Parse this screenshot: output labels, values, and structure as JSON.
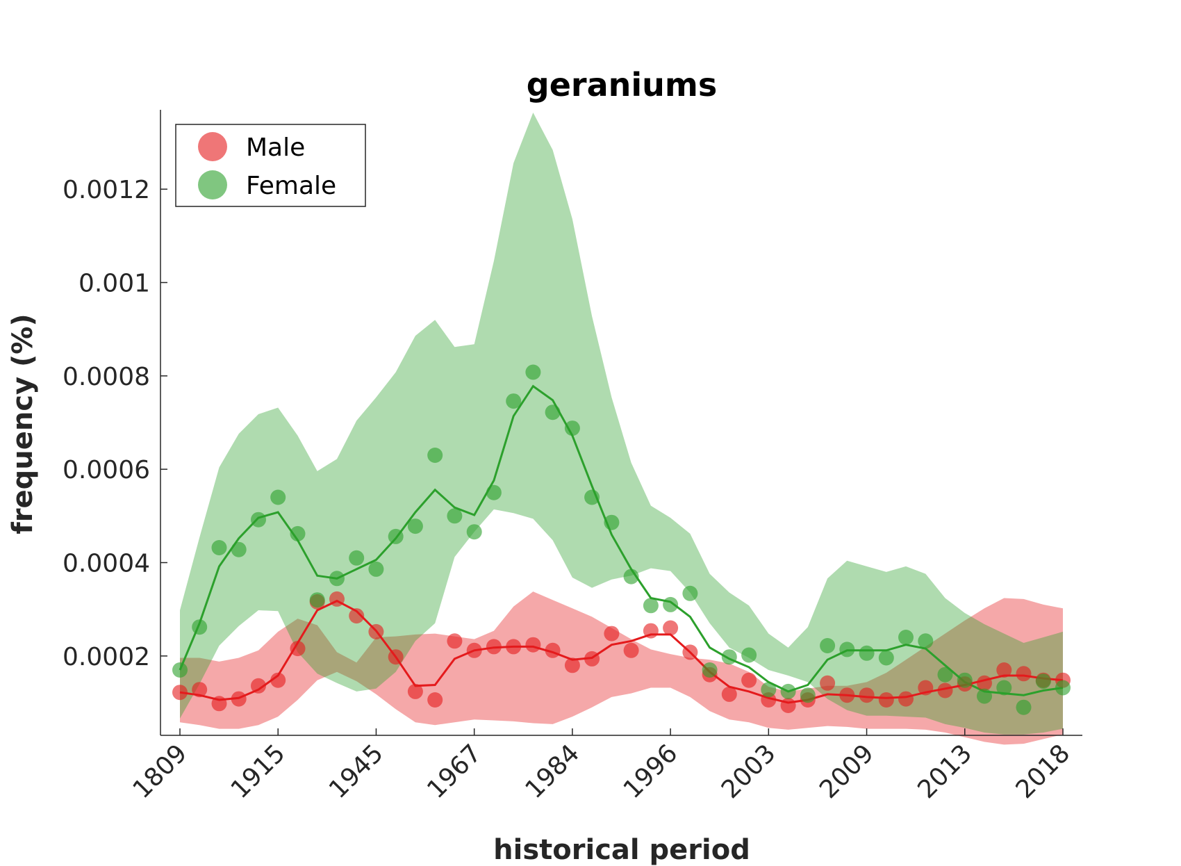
{
  "chart_data": {
    "type": "line",
    "title": "geraniums",
    "xlabel": "historical period",
    "ylabel": "frequency (%)",
    "x_tick_labels": [
      "1809",
      "1915",
      "1945",
      "1967",
      "1984",
      "1996",
      "2003",
      "2009",
      "2013",
      "2018"
    ],
    "y_ticks": [
      0.0002,
      0.0004,
      0.0006,
      0.0008,
      0.001,
      0.0012
    ],
    "y_tick_labels": [
      "0.0002",
      "0.0004",
      "0.0006",
      "0.0008",
      "0.001",
      "0.0012"
    ],
    "ylim": [
      3e-05,
      0.00137
    ],
    "legend": {
      "position": "top-left",
      "entries": [
        "Male",
        "Female"
      ]
    },
    "series": [
      {
        "name": "Male",
        "color": "#e41a1c",
        "band_color": "#f4a3a4",
        "points": [
          0.000122,
          0.000128,
          9.8e-05,
          0.000108,
          0.000136,
          0.000148,
          0.000216,
          0.000316,
          0.000322,
          0.000286,
          0.000252,
          0.000198,
          0.000124,
          0.000106,
          0.000232,
          0.000212,
          0.00022,
          0.00022,
          0.000224,
          0.000212,
          0.00018,
          0.000194,
          0.000248,
          0.000212,
          0.000254,
          0.00026,
          0.000208,
          0.00016,
          0.000118,
          0.000148,
          0.000106,
          9.4e-05,
          0.000106,
          0.000142,
          0.000116,
          0.000116,
          0.000106,
          0.000108,
          0.000132,
          0.000126,
          0.00014,
          0.000142,
          0.00017,
          0.000162,
          0.000148,
          0.000148
        ],
        "mean": [
          0.000122,
          0.000116,
          0.000106,
          0.00011,
          0.000128,
          0.000158,
          0.000228,
          0.000298,
          0.000318,
          0.000296,
          0.000254,
          0.000198,
          0.000136,
          0.000138,
          0.000194,
          0.000212,
          0.000218,
          0.00022,
          0.00022,
          0.000208,
          0.000192,
          0.000196,
          0.000224,
          0.000232,
          0.000246,
          0.000246,
          0.000208,
          0.000166,
          0.000134,
          0.000124,
          0.00011,
          0.0001,
          0.000106,
          0.000118,
          0.000116,
          0.000112,
          0.00011,
          0.000112,
          0.000122,
          0.00013,
          0.000138,
          0.000148,
          0.000158,
          0.000158,
          0.000152,
          0.000148
        ],
        "upper": [
          0.000196,
          0.000196,
          0.000188,
          0.000196,
          0.000212,
          0.000252,
          0.00028,
          0.000266,
          0.000208,
          0.000186,
          0.00024,
          0.000242,
          0.000246,
          0.000248,
          0.000242,
          0.000236,
          0.000254,
          0.000306,
          0.000338,
          0.00032,
          0.000302,
          0.000284,
          0.00026,
          0.000236,
          0.000214,
          0.000204,
          0.000196,
          0.000192,
          0.000184,
          0.000166,
          0.000134,
          0.000124,
          0.00013,
          0.000136,
          0.000136,
          0.000144,
          0.000164,
          0.000192,
          0.00022,
          0.000248,
          0.000276,
          0.000302,
          0.000324,
          0.000322,
          0.00031,
          0.000302
        ],
        "lower": [
          5.8e-05,
          5.2e-05,
          4.4e-05,
          4.4e-05,
          5.2e-05,
          7e-05,
          0.000106,
          0.000148,
          0.000166,
          0.000146,
          0.000118,
          8.6e-05,
          5.8e-05,
          5.2e-05,
          5.8e-05,
          6.4e-05,
          6.2e-05,
          6e-05,
          5.6e-05,
          5.4e-05,
          7e-05,
          9e-05,
          0.000112,
          0.00012,
          0.000132,
          0.000132,
          0.000112,
          8.2e-05,
          6.4e-05,
          5.8e-05,
          4.6e-05,
          4.2e-05,
          4.6e-05,
          5e-05,
          4.8e-05,
          4.4e-05,
          4.4e-05,
          4.4e-05,
          4.2e-05,
          3.6e-05,
          2.6e-05,
          1.6e-05,
          1e-05,
          1.2e-05,
          2.2e-05,
          3.2e-05
        ]
      },
      {
        "name": "Female",
        "color": "#2ca02c",
        "band_color": "#a8d8a0",
        "points": [
          0.00017,
          0.000262,
          0.000432,
          0.000428,
          0.000492,
          0.00054,
          0.000462,
          0.00032,
          0.000366,
          0.00041,
          0.000386,
          0.000456,
          0.000478,
          0.00063,
          0.0005,
          0.000466,
          0.00055,
          0.000746,
          0.000808,
          0.000722,
          0.000688,
          0.00054,
          0.000486,
          0.00037,
          0.000308,
          0.00031,
          0.000334,
          0.00017,
          0.000198,
          0.000202,
          0.000128,
          0.000124,
          0.000116,
          0.000222,
          0.000214,
          0.000206,
          0.000196,
          0.00024,
          0.000232,
          0.00016,
          0.000148,
          0.000114,
          0.000132,
          9e-05,
          0.000146,
          0.000132
        ],
        "mean": [
          0.00017,
          0.00027,
          0.000392,
          0.000452,
          0.000496,
          0.000508,
          0.000448,
          0.000372,
          0.000366,
          0.000386,
          0.000406,
          0.000452,
          0.000508,
          0.000556,
          0.000518,
          0.000502,
          0.000576,
          0.000714,
          0.000778,
          0.000748,
          0.000672,
          0.000564,
          0.00046,
          0.000386,
          0.000324,
          0.000316,
          0.000284,
          0.000218,
          0.000194,
          0.000176,
          0.000144,
          0.000124,
          0.000138,
          0.000192,
          0.000212,
          0.000212,
          0.000212,
          0.000224,
          0.000216,
          0.00018,
          0.000144,
          0.000124,
          0.00012,
          0.000116,
          0.000126,
          0.000132
        ],
        "upper": [
          0.000298,
          0.000454,
          0.000604,
          0.000676,
          0.000718,
          0.000732,
          0.000672,
          0.000596,
          0.000622,
          0.000704,
          0.000754,
          0.000808,
          0.000886,
          0.00092,
          0.000862,
          0.000868,
          0.001046,
          0.001256,
          0.001364,
          0.001284,
          0.001136,
          0.000928,
          0.000754,
          0.000614,
          0.000522,
          0.000496,
          0.000462,
          0.000376,
          0.000336,
          0.000308,
          0.000248,
          0.000218,
          0.000262,
          0.000366,
          0.000404,
          0.000392,
          0.00038,
          0.000392,
          0.000376,
          0.000324,
          0.000292,
          0.000268,
          0.000248,
          0.000228,
          0.00024,
          0.000252
        ],
        "lower": [
          6.6e-05,
          0.00014,
          0.000222,
          0.000264,
          0.000298,
          0.000296,
          0.000208,
          0.000162,
          0.000142,
          0.000124,
          0.00013,
          0.000166,
          0.000232,
          0.00027,
          0.000412,
          0.000466,
          0.000514,
          0.000506,
          0.000494,
          0.000448,
          0.000368,
          0.000346,
          0.000364,
          0.000372,
          0.000388,
          0.000382,
          0.000336,
          0.00027,
          0.000218,
          0.000196,
          0.00017,
          0.000158,
          0.000144,
          0.000108,
          8.4e-05,
          7.2e-05,
          7.2e-05,
          7e-05,
          6.8e-05,
          5.4e-05,
          4.6e-05,
          3.6e-05,
          3.2e-05,
          3.2e-05,
          3.6e-05,
          4.4e-05
        ]
      }
    ]
  }
}
